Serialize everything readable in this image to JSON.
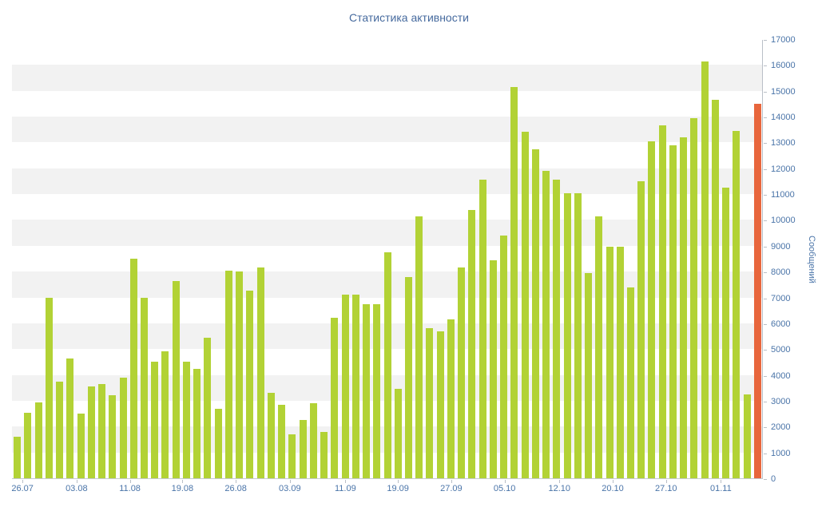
{
  "chart_data": {
    "type": "bar",
    "title": "Статистика активности",
    "xlabel": "",
    "ylabel": "Сообщений",
    "ylim": [
      0,
      17000
    ],
    "grid": "alternating-horizontal-bands",
    "legend": "none",
    "y_axis_position": "right",
    "y_ticks": [
      0,
      1000,
      2000,
      3000,
      4000,
      5000,
      6000,
      7000,
      8000,
      9000,
      10000,
      11000,
      12000,
      13000,
      14000,
      15000,
      16000,
      17000
    ],
    "x_ticks": [
      {
        "label": "26.07",
        "pos": 0.014
      },
      {
        "label": "03.08",
        "pos": 0.086
      },
      {
        "label": "11.08",
        "pos": 0.157
      },
      {
        "label": "19.08",
        "pos": 0.227
      },
      {
        "label": "26.08",
        "pos": 0.298
      },
      {
        "label": "03.09",
        "pos": 0.37
      },
      {
        "label": "11.09",
        "pos": 0.444
      },
      {
        "label": "19.09",
        "pos": 0.514
      },
      {
        "label": "27.09",
        "pos": 0.585
      },
      {
        "label": "05.10",
        "pos": 0.656
      },
      {
        "label": "12.10",
        "pos": 0.729
      },
      {
        "label": "20.10",
        "pos": 0.8
      },
      {
        "label": "27.10",
        "pos": 0.871
      },
      {
        "label": "01.11",
        "pos": 0.944
      }
    ],
    "values": [
      1600,
      2550,
      2950,
      7000,
      3750,
      4650,
      2500,
      3550,
      3650,
      3200,
      3900,
      8500,
      7000,
      4500,
      4900,
      7650,
      4500,
      4250,
      5450,
      2700,
      8050,
      8000,
      7250,
      8150,
      3300,
      2850,
      1700,
      2250,
      2900,
      1800,
      6200,
      7100,
      7100,
      6750,
      6750,
      8750,
      3450,
      7800,
      10150,
      5800,
      5700,
      6150,
      8150,
      10400,
      11550,
      8450,
      9400,
      15150,
      13400,
      12750,
      11900,
      11550,
      11050,
      11050,
      7950,
      10150,
      8950,
      8950,
      7400,
      11500,
      13050,
      13650,
      12900,
      13200,
      13950,
      16150,
      14650,
      11250,
      13450,
      3250,
      14500
    ],
    "highlight_index": 70,
    "colors": {
      "bar": "#b2d235",
      "highlight": "#e8663c",
      "band": "#f2f2f2",
      "axis_text": "#4a74a8",
      "title_text": "#466a9e"
    }
  }
}
